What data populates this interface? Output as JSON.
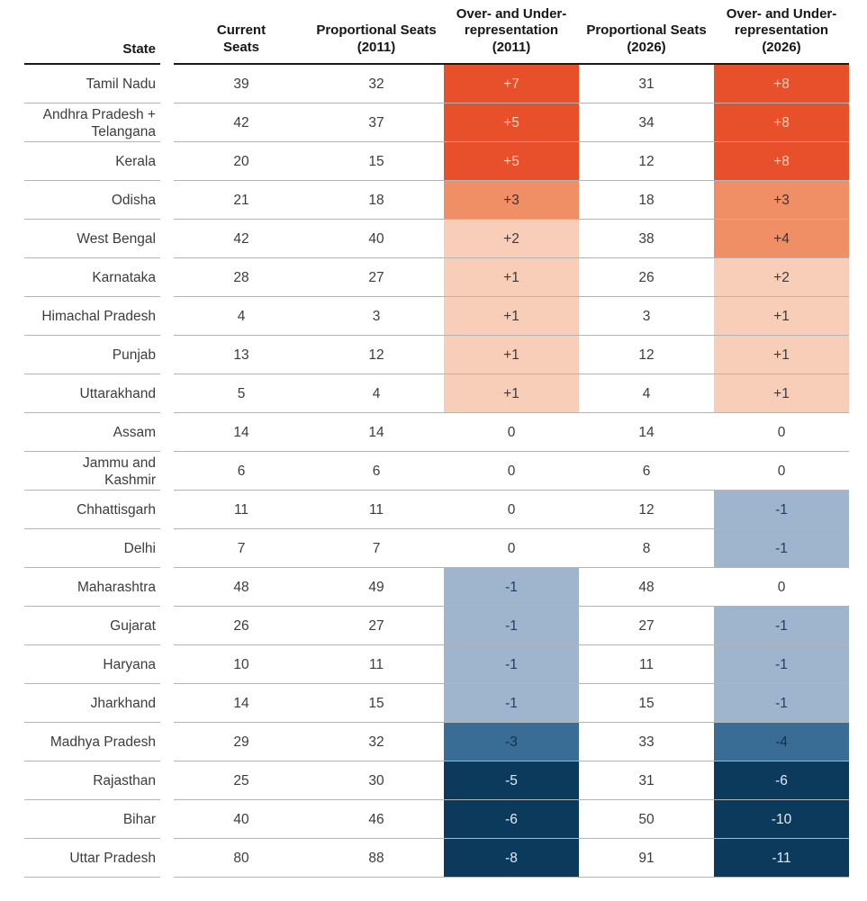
{
  "colors": {
    "orange_strong": "#E8502C",
    "orange_mid": "#F08F66",
    "orange_light": "#F9CEB8",
    "blue_light": "#9FB5CE",
    "blue_mid": "#3A6D96",
    "blue_dark": "#0C3A5D",
    "text_on_orange_strong": "#F8D2C1",
    "text_on_orange_mid": "#44302A",
    "text_on_orange_light": "#3A3A3A",
    "text_on_blue_light": "#1E3E62",
    "text_on_blue_mid": "#10304F",
    "text_on_blue_dark": "#E2ECF4",
    "body_text": "#3C3C3C",
    "header_text": "#161616",
    "row_line": "#B4B4B4",
    "header_line": "#1A1A1A"
  },
  "chart_data": {
    "type": "table",
    "columns": [
      "State",
      "Current Seats",
      "Proportional Seats (2011)",
      "Over- and Under-representation (2011)",
      "Proportional Seats (2026)",
      "Over- and Under-representation (2026)"
    ],
    "header_lines": [
      [
        "State"
      ],
      [
        "Current",
        "Seats"
      ],
      [
        "Proportional Seats",
        "(2011)"
      ],
      [
        "Over- and Under-",
        "representation",
        "(2011)"
      ],
      [
        "Proportional Seats",
        "(2026)"
      ],
      [
        "Over- and Under-",
        "representation",
        "(2026)"
      ]
    ],
    "rows": [
      {
        "state": "Tamil Nadu",
        "state_lines": [
          "Tamil Nadu"
        ],
        "current": 39,
        "prop_2011": 32,
        "ou_2011": "+7",
        "ou_2011_tone": "orange_strong",
        "prop_2026": 31,
        "ou_2026": "+8",
        "ou_2026_tone": "orange_strong"
      },
      {
        "state": "Andhra Pradesh + Telangana",
        "state_lines": [
          "Andhra Pradesh +",
          "Telangana"
        ],
        "current": 42,
        "prop_2011": 37,
        "ou_2011": "+5",
        "ou_2011_tone": "orange_strong",
        "prop_2026": 34,
        "ou_2026": "+8",
        "ou_2026_tone": "orange_strong"
      },
      {
        "state": "Kerala",
        "state_lines": [
          "Kerala"
        ],
        "current": 20,
        "prop_2011": 15,
        "ou_2011": "+5",
        "ou_2011_tone": "orange_strong",
        "prop_2026": 12,
        "ou_2026": "+8",
        "ou_2026_tone": "orange_strong"
      },
      {
        "state": "Odisha",
        "state_lines": [
          "Odisha"
        ],
        "current": 21,
        "prop_2011": 18,
        "ou_2011": "+3",
        "ou_2011_tone": "orange_mid",
        "prop_2026": 18,
        "ou_2026": "+3",
        "ou_2026_tone": "orange_mid"
      },
      {
        "state": "West Bengal",
        "state_lines": [
          "West Bengal"
        ],
        "current": 42,
        "prop_2011": 40,
        "ou_2011": "+2",
        "ou_2011_tone": "orange_light",
        "prop_2026": 38,
        "ou_2026": "+4",
        "ou_2026_tone": "orange_mid"
      },
      {
        "state": "Karnataka",
        "state_lines": [
          "Karnataka"
        ],
        "current": 28,
        "prop_2011": 27,
        "ou_2011": "+1",
        "ou_2011_tone": "orange_light",
        "prop_2026": 26,
        "ou_2026": "+2",
        "ou_2026_tone": "orange_light"
      },
      {
        "state": "Himachal Pradesh",
        "state_lines": [
          "Himachal Pradesh"
        ],
        "current": 4,
        "prop_2011": 3,
        "ou_2011": "+1",
        "ou_2011_tone": "orange_light",
        "prop_2026": 3,
        "ou_2026": "+1",
        "ou_2026_tone": "orange_light"
      },
      {
        "state": "Punjab",
        "state_lines": [
          "Punjab"
        ],
        "current": 13,
        "prop_2011": 12,
        "ou_2011": "+1",
        "ou_2011_tone": "orange_light",
        "prop_2026": 12,
        "ou_2026": "+1",
        "ou_2026_tone": "orange_light"
      },
      {
        "state": "Uttarakhand",
        "state_lines": [
          "Uttarakhand"
        ],
        "current": 5,
        "prop_2011": 4,
        "ou_2011": "+1",
        "ou_2011_tone": "orange_light",
        "prop_2026": 4,
        "ou_2026": "+1",
        "ou_2026_tone": "orange_light"
      },
      {
        "state": "Assam",
        "state_lines": [
          "Assam"
        ],
        "current": 14,
        "prop_2011": 14,
        "ou_2011": "0",
        "ou_2011_tone": "none",
        "prop_2026": 14,
        "ou_2026": "0",
        "ou_2026_tone": "none"
      },
      {
        "state": "Jammu and Kashmir",
        "state_lines": [
          "Jammu and",
          "Kashmir"
        ],
        "current": 6,
        "prop_2011": 6,
        "ou_2011": "0",
        "ou_2011_tone": "none",
        "prop_2026": 6,
        "ou_2026": "0",
        "ou_2026_tone": "none"
      },
      {
        "state": "Chhattisgarh",
        "state_lines": [
          "Chhattisgarh"
        ],
        "current": 11,
        "prop_2011": 11,
        "ou_2011": "0",
        "ou_2011_tone": "none",
        "prop_2026": 12,
        "ou_2026": "-1",
        "ou_2026_tone": "blue_light"
      },
      {
        "state": "Delhi",
        "state_lines": [
          "Delhi"
        ],
        "current": 7,
        "prop_2011": 7,
        "ou_2011": "0",
        "ou_2011_tone": "none",
        "prop_2026": 8,
        "ou_2026": "-1",
        "ou_2026_tone": "blue_light"
      },
      {
        "state": "Maharashtra",
        "state_lines": [
          "Maharashtra"
        ],
        "current": 48,
        "prop_2011": 49,
        "ou_2011": "-1",
        "ou_2011_tone": "blue_light",
        "prop_2026": 48,
        "ou_2026": "0",
        "ou_2026_tone": "none"
      },
      {
        "state": "Gujarat",
        "state_lines": [
          "Gujarat"
        ],
        "current": 26,
        "prop_2011": 27,
        "ou_2011": "-1",
        "ou_2011_tone": "blue_light",
        "prop_2026": 27,
        "ou_2026": "-1",
        "ou_2026_tone": "blue_light"
      },
      {
        "state": "Haryana",
        "state_lines": [
          "Haryana"
        ],
        "current": 10,
        "prop_2011": 11,
        "ou_2011": "-1",
        "ou_2011_tone": "blue_light",
        "prop_2026": 11,
        "ou_2026": "-1",
        "ou_2026_tone": "blue_light"
      },
      {
        "state": "Jharkhand",
        "state_lines": [
          "Jharkhand"
        ],
        "current": 14,
        "prop_2011": 15,
        "ou_2011": "-1",
        "ou_2011_tone": "blue_light",
        "prop_2026": 15,
        "ou_2026": "-1",
        "ou_2026_tone": "blue_light"
      },
      {
        "state": "Madhya Pradesh",
        "state_lines": [
          "Madhya Pradesh"
        ],
        "current": 29,
        "prop_2011": 32,
        "ou_2011": "-3",
        "ou_2011_tone": "blue_mid",
        "prop_2026": 33,
        "ou_2026": "-4",
        "ou_2026_tone": "blue_mid"
      },
      {
        "state": "Rajasthan",
        "state_lines": [
          "Rajasthan"
        ],
        "current": 25,
        "prop_2011": 30,
        "ou_2011": "-5",
        "ou_2011_tone": "blue_dark",
        "prop_2026": 31,
        "ou_2026": "-6",
        "ou_2026_tone": "blue_dark"
      },
      {
        "state": "Bihar",
        "state_lines": [
          "Bihar"
        ],
        "current": 40,
        "prop_2011": 46,
        "ou_2011": "-6",
        "ou_2011_tone": "blue_dark",
        "prop_2026": 50,
        "ou_2026": "-10",
        "ou_2026_tone": "blue_dark"
      },
      {
        "state": "Uttar Pradesh",
        "state_lines": [
          "Uttar Pradesh"
        ],
        "current": 80,
        "prop_2011": 88,
        "ou_2011": "-8",
        "ou_2011_tone": "blue_dark",
        "prop_2026": 91,
        "ou_2026": "-11",
        "ou_2026_tone": "blue_dark"
      }
    ]
  }
}
